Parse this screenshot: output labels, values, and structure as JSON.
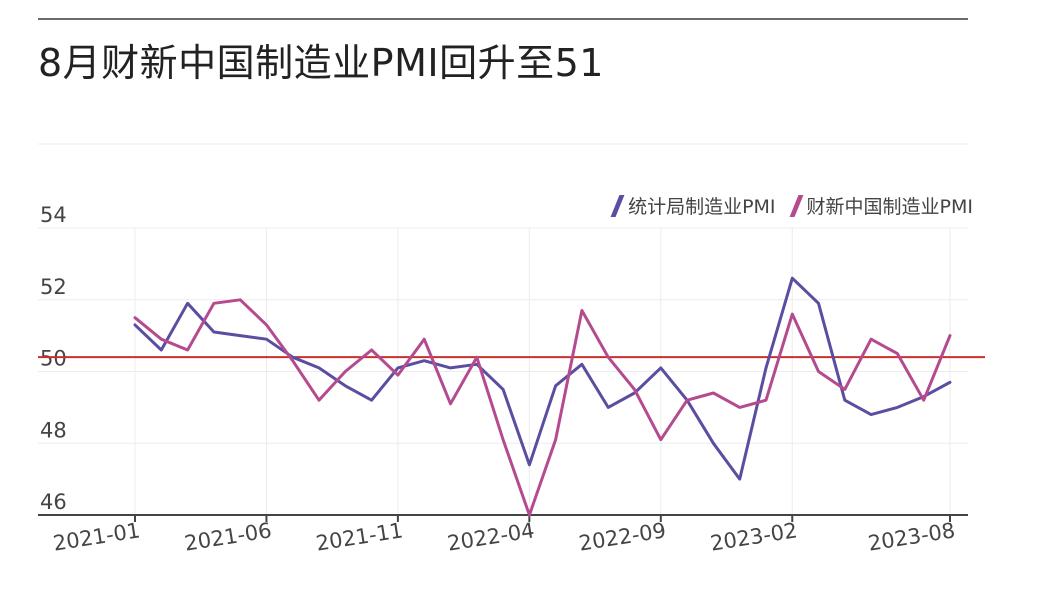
{
  "title": "8月财新中国制造业PMI回升至51",
  "colors": {
    "nbs": "#5b4ea0",
    "caixin": "#b54b8f",
    "reference_line": "#c9302c",
    "grid": "#ececec",
    "axis": "#444444"
  },
  "chart_data": {
    "type": "line",
    "title": "8月财新中国制造业PMI回升至51",
    "xlabel": "",
    "ylabel": "",
    "ylim": [
      46,
      54
    ],
    "yticks": [
      46,
      48,
      50,
      52,
      54
    ],
    "grid": true,
    "legend_position": "top-right",
    "reference_line": 50.4,
    "x": [
      "2021-01",
      "2021-02",
      "2021-03",
      "2021-04",
      "2021-05",
      "2021-06",
      "2021-07",
      "2021-08",
      "2021-09",
      "2021-10",
      "2021-11",
      "2021-12",
      "2022-01",
      "2022-02",
      "2022-03",
      "2022-04",
      "2022-05",
      "2022-06",
      "2022-07",
      "2022-08",
      "2022-09",
      "2022-10",
      "2022-11",
      "2022-12",
      "2023-01",
      "2023-02",
      "2023-03",
      "2023-04",
      "2023-05",
      "2023-06",
      "2023-07",
      "2023-08"
    ],
    "xtick_labels": [
      "2021-01",
      "2021-06",
      "2021-11",
      "2022-04",
      "2022-09",
      "2023-02",
      "2023-08"
    ],
    "xtick_indices": [
      0,
      5,
      10,
      15,
      20,
      25,
      31
    ],
    "series": [
      {
        "name": "统计局制造业PMI",
        "color": "#5b4ea0",
        "values": [
          51.3,
          50.6,
          51.9,
          51.1,
          51.0,
          50.9,
          50.4,
          50.1,
          49.6,
          49.2,
          50.1,
          50.3,
          50.1,
          50.2,
          49.5,
          47.4,
          49.6,
          50.2,
          49.0,
          49.4,
          50.1,
          49.2,
          48.0,
          47.0,
          50.1,
          52.6,
          51.9,
          49.2,
          48.8,
          49.0,
          49.3,
          49.7
        ]
      },
      {
        "name": "财新中国制造业PMI",
        "color": "#b54b8f",
        "values": [
          51.5,
          50.9,
          50.6,
          51.9,
          52.0,
          51.3,
          50.3,
          49.2,
          50.0,
          50.6,
          49.9,
          50.9,
          49.1,
          50.4,
          48.1,
          46.0,
          48.1,
          51.7,
          50.4,
          49.5,
          48.1,
          49.2,
          49.4,
          49.0,
          49.2,
          51.6,
          50.0,
          49.5,
          50.9,
          50.5,
          49.2,
          51.0
        ]
      }
    ]
  }
}
